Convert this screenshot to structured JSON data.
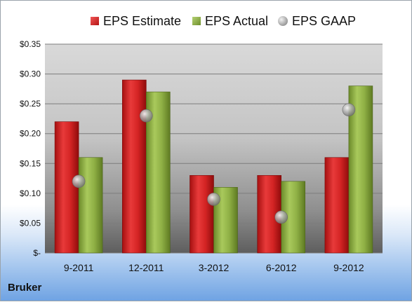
{
  "brand": "Bruker",
  "legend": [
    {
      "label": "EPS Estimate",
      "kind": "red"
    },
    {
      "label": "EPS Actual",
      "kind": "green"
    },
    {
      "label": "EPS GAAP",
      "kind": "gray"
    }
  ],
  "chart_data": {
    "type": "bar",
    "categories": [
      "9-2011",
      "12-2011",
      "3-2012",
      "6-2012",
      "9-2012"
    ],
    "series": [
      {
        "name": "EPS Estimate",
        "type": "bar",
        "color": "#d42424",
        "values": [
          0.22,
          0.29,
          0.13,
          0.13,
          0.16
        ]
      },
      {
        "name": "EPS Actual",
        "type": "bar",
        "color": "#8fb045",
        "values": [
          0.16,
          0.27,
          0.11,
          0.12,
          0.28
        ]
      },
      {
        "name": "EPS GAAP",
        "type": "scatter",
        "color": "#a0a0a0",
        "values": [
          0.12,
          0.23,
          0.09,
          0.06,
          0.24
        ]
      }
    ],
    "y_ticks": [
      0,
      0.05,
      0.1,
      0.15,
      0.2,
      0.25,
      0.3,
      0.35
    ],
    "y_tick_labels": [
      "$-",
      "$0.05",
      "$0.10",
      "$0.15",
      "$0.20",
      "$0.25",
      "$0.30",
      "$0.35"
    ],
    "ylim": [
      0,
      0.35
    ],
    "grid": true,
    "legend_position": "top"
  }
}
